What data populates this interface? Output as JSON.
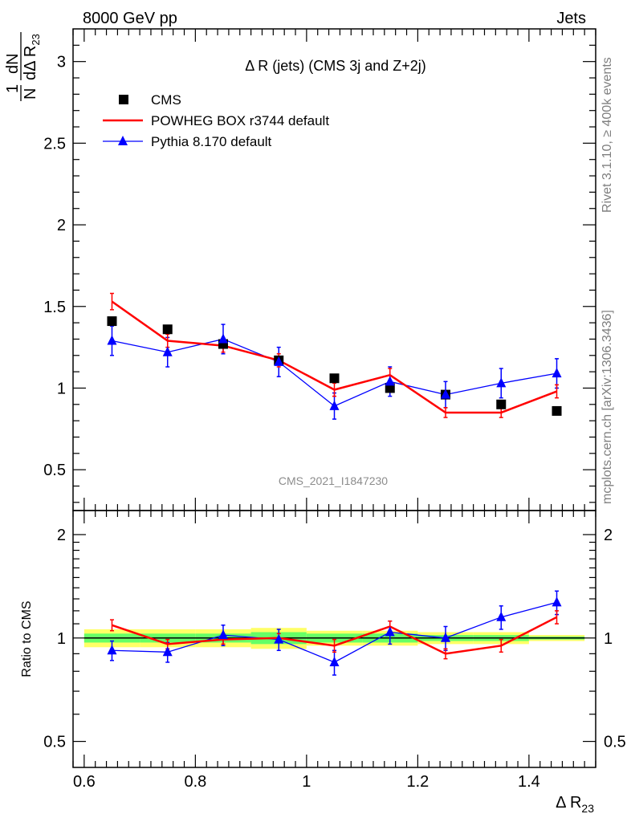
{
  "header": {
    "energy_label": "8000 GeV pp",
    "process_label": "Jets"
  },
  "side_text": {
    "rivet": "Rivet 3.1.10, ≥ 400k events",
    "mcplots": "mcplots.cern.ch [arXiv:1306.3436]"
  },
  "watermark": "CMS_2021_I1847230",
  "chart_data": [
    {
      "type": "line",
      "title": "Δ R (jets) (CMS 3j and Z+2j)",
      "ylabel": "1/N dN/dΔ R23",
      "ylim": [
        0.25,
        3.2
      ],
      "yticks": [
        0.5,
        1,
        1.5,
        2,
        2.5,
        3
      ],
      "xlim": [
        0.58,
        1.52
      ],
      "legend_position": "top-left",
      "x": [
        0.65,
        0.75,
        0.85,
        0.95,
        1.05,
        1.15,
        1.25,
        1.35,
        1.45
      ],
      "series": [
        {
          "name": "CMS",
          "style": "markers",
          "marker": "square",
          "color": "#000000",
          "values": [
            1.41,
            1.36,
            1.27,
            1.17,
            1.06,
            1.0,
            0.96,
            0.9,
            0.86
          ]
        },
        {
          "name": "POWHEG BOX r3744 default",
          "style": "line",
          "color": "#ff0000",
          "values": [
            1.53,
            1.29,
            1.26,
            1.17,
            0.99,
            1.08,
            0.85,
            0.85,
            0.98
          ],
          "errors": [
            0.05,
            0.04,
            0.04,
            0.04,
            0.04,
            0.04,
            0.03,
            0.03,
            0.04
          ]
        },
        {
          "name": "Pythia 8.170 default",
          "style": "line-markers",
          "marker": "triangle",
          "color": "#0000ff",
          "values": [
            1.29,
            1.22,
            1.3,
            1.16,
            0.89,
            1.04,
            0.96,
            1.03,
            1.09
          ],
          "errors": [
            0.09,
            0.09,
            0.09,
            0.09,
            0.08,
            0.09,
            0.08,
            0.09,
            0.09
          ]
        }
      ]
    },
    {
      "type": "line",
      "ylabel": "Ratio to CMS",
      "xlabel": "Δ R23",
      "ylim": [
        0.42,
        2.35
      ],
      "yticks": [
        0.5,
        1,
        2
      ],
      "scale": "log",
      "xlim": [
        0.58,
        1.52
      ],
      "xticks": [
        0.6,
        0.8,
        1,
        1.2,
        1.4
      ],
      "x": [
        0.65,
        0.75,
        0.85,
        0.95,
        1.05,
        1.15,
        1.25,
        1.35,
        1.45
      ],
      "bands": {
        "x_edges": [
          0.6,
          0.7,
          0.8,
          0.9,
          1.0,
          1.1,
          1.2,
          1.3,
          1.4,
          1.5
        ],
        "yellow_half_width": [
          0.06,
          0.06,
          0.06,
          0.07,
          0.05,
          0.05,
          0.04,
          0.04,
          0.02
        ],
        "green_half_width": [
          0.03,
          0.03,
          0.03,
          0.04,
          0.03,
          0.03,
          0.02,
          0.02,
          0.01
        ],
        "yellow_color": "#ffff66",
        "green_color": "#66ff66"
      },
      "series": [
        {
          "name": "POWHEG BOX r3744 default",
          "color": "#ff0000",
          "values": [
            1.09,
            0.96,
            0.99,
            1.0,
            0.95,
            1.08,
            0.9,
            0.95,
            1.15
          ],
          "errors": [
            0.04,
            0.03,
            0.03,
            0.03,
            0.04,
            0.04,
            0.03,
            0.04,
            0.05
          ]
        },
        {
          "name": "Pythia 8.170 default",
          "color": "#0000ff",
          "values": [
            0.92,
            0.91,
            1.02,
            0.99,
            0.85,
            1.04,
            1.0,
            1.15,
            1.27
          ],
          "errors": [
            0.06,
            0.06,
            0.07,
            0.07,
            0.07,
            0.08,
            0.08,
            0.09,
            0.1
          ]
        }
      ]
    }
  ]
}
